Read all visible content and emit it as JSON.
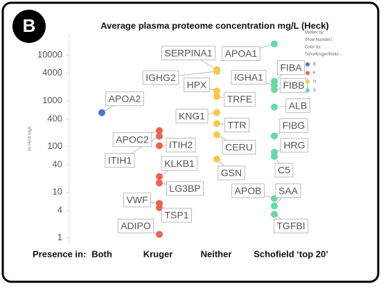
{
  "chart_data": {
    "type": "strip",
    "panel_label": "B",
    "title": "Average plasma proteome concentration mg/L (Heck)",
    "x_label": "Presence in:",
    "y_label": "Av Heck mg/L",
    "categories": [
      "Both",
      "Kruger",
      "Neither",
      "Schofield ‘top 20’"
    ],
    "log_y": true,
    "ylim": [
      0.75,
      30000
    ],
    "yticks": [
      1,
      4,
      10,
      40,
      100,
      400,
      1000,
      4000,
      10000
    ],
    "legend_title": [
      "Marker by:",
      "(Row Number)",
      "Color by:",
      "Scho/Kruger/Both/..."
    ],
    "legend_position": "upper right",
    "series": [
      {
        "name": "B",
        "color": "#4a74d8",
        "labels": [
          "APOA2"
        ],
        "values": [
          550
        ]
      },
      {
        "name": "K",
        "color": "#ec6350",
        "labels": [
          "APOC2",
          "ITIH1",
          "ITIH2",
          "KLKB1",
          "LG3BP",
          "VWF",
          "TSP1",
          "ADIPO"
        ],
        "values": [
          223,
          169,
          104,
          22,
          16,
          5.7,
          4.6,
          1.2
        ]
      },
      {
        "name": "N",
        "color": "#f7c948",
        "labels": [
          "SERPINA1",
          "IGHG2",
          "HPX",
          "TRFE",
          "KNG1",
          "TTR",
          "CERU",
          "GSN"
        ],
        "values": [
          4800,
          4400,
          1630,
          1240,
          550,
          316,
          181,
          53
        ]
      },
      {
        "name": "S",
        "color": "#66d9a4",
        "labels": [
          "APOA1",
          "FIBA",
          "IGHA1",
          "FIBB",
          "ALB",
          "FIBG",
          "HRG",
          "C5",
          "APOB",
          "SAA",
          "TGFBI"
        ],
        "values": [
          17500,
          2650,
          2150,
          1750,
          730,
          170,
          75,
          61,
          7.3,
          5,
          3.3
        ]
      }
    ]
  }
}
